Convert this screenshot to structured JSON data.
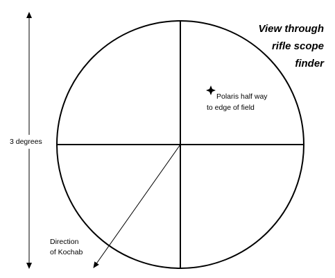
{
  "title_lines": [
    "View through",
    "rifle scope",
    "finder"
  ],
  "field_size_label": "3 degrees",
  "polaris_label_lines": [
    "Polaris half way",
    "to edge of field"
  ],
  "kochab_label_lines": [
    "Direction",
    "of Kochab"
  ],
  "colors": {
    "ink": "#000000",
    "background": "#ffffff"
  }
}
